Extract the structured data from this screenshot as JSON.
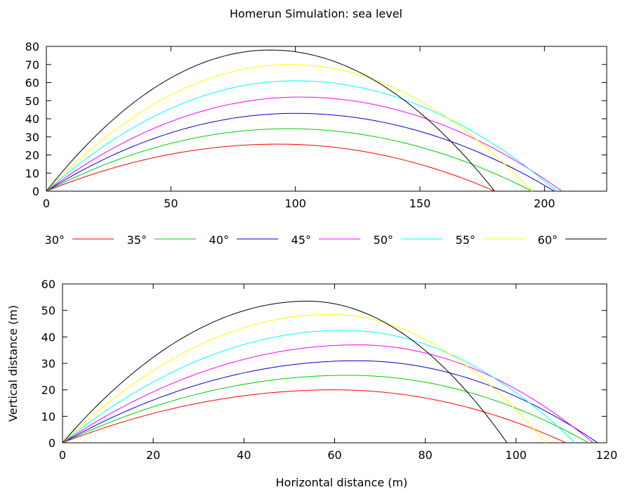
{
  "title": "Homerun Simulation: sea level",
  "legend": {
    "placement": "between-plots",
    "entries": [
      {
        "label": "30°",
        "color": "#ff0000"
      },
      {
        "label": "35°",
        "color": "#00cc00"
      },
      {
        "label": "40°",
        "color": "#0000cc"
      },
      {
        "label": "45°",
        "color": "#ff00ff"
      },
      {
        "label": "50°",
        "color": "#00ffff"
      },
      {
        "label": "55°",
        "color": "#ffff00"
      },
      {
        "label": "60°",
        "color": "#000000"
      }
    ]
  },
  "chart_data": [
    {
      "type": "line",
      "title": "",
      "xlabel": "",
      "ylabel": "",
      "xlim": [
        0,
        225
      ],
      "ylim": [
        0,
        80
      ],
      "xticks": [
        0,
        50,
        100,
        150,
        200
      ],
      "yticks": [
        0,
        10,
        20,
        30,
        40,
        50,
        60,
        70,
        80
      ],
      "grid": false,
      "series": [
        {
          "name": "30°",
          "color": "#ff0000",
          "range": 180,
          "peak_x": 93,
          "peak_y": 26
        },
        {
          "name": "35°",
          "color": "#00cc00",
          "range": 195,
          "peak_x": 97,
          "peak_y": 34.5
        },
        {
          "name": "40°",
          "color": "#0000cc",
          "range": 204,
          "peak_x": 100,
          "peak_y": 43
        },
        {
          "name": "45°",
          "color": "#ff00ff",
          "range": 207,
          "peak_x": 102,
          "peak_y": 52
        },
        {
          "name": "50°",
          "color": "#00ffff",
          "range": 205,
          "peak_x": 100,
          "peak_y": 61
        },
        {
          "name": "55°",
          "color": "#ffff00",
          "range": 195,
          "peak_x": 98,
          "peak_y": 70
        },
        {
          "name": "60°",
          "color": "#000000",
          "range": 180,
          "peak_x": 90,
          "peak_y": 78
        }
      ]
    },
    {
      "type": "line",
      "title": "",
      "xlabel": "Horizontal distance (m)",
      "ylabel": "Vertical distance (m)",
      "xlim": [
        0,
        120
      ],
      "ylim": [
        0,
        60
      ],
      "xticks": [
        0,
        20,
        40,
        60,
        80,
        100,
        120
      ],
      "yticks": [
        0,
        10,
        20,
        30,
        40,
        50,
        60
      ],
      "grid": false,
      "series": [
        {
          "name": "30°",
          "color": "#ff0000",
          "range": 111,
          "peak_x": 60,
          "peak_y": 20
        },
        {
          "name": "35°",
          "color": "#00cc00",
          "range": 116,
          "peak_x": 63,
          "peak_y": 25.5
        },
        {
          "name": "40°",
          "color": "#0000cc",
          "range": 118,
          "peak_x": 65,
          "peak_y": 31
        },
        {
          "name": "45°",
          "color": "#ff00ff",
          "range": 117,
          "peak_x": 65,
          "peak_y": 37
        },
        {
          "name": "50°",
          "color": "#00ffff",
          "range": 113,
          "peak_x": 62,
          "peak_y": 42.5
        },
        {
          "name": "55°",
          "color": "#ffff00",
          "range": 106.5,
          "peak_x": 59,
          "peak_y": 48.5
        },
        {
          "name": "60°",
          "color": "#000000",
          "range": 98,
          "peak_x": 54,
          "peak_y": 53.5
        }
      ]
    }
  ]
}
